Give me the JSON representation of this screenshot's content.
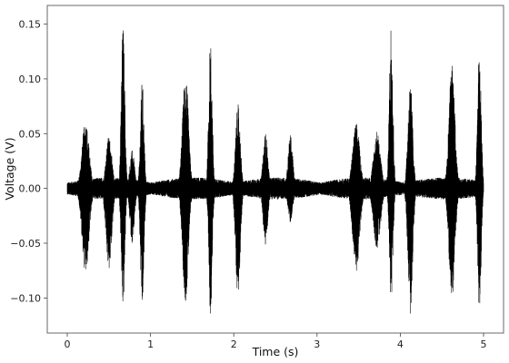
{
  "chart_data": {
    "type": "line",
    "title": "",
    "xlabel": "Time (s)",
    "ylabel": "Voltage (V)",
    "xlim": [
      -0.24,
      5.24
    ],
    "ylim": [
      -0.132,
      0.167
    ],
    "x_ticks": [
      0,
      1,
      2,
      3,
      4,
      5
    ],
    "y_ticks": [
      -0.1,
      -0.05,
      0.0,
      0.05,
      0.1,
      0.15
    ],
    "x_tick_labels": [
      "0",
      "1",
      "2",
      "3",
      "4",
      "5"
    ],
    "y_tick_labels": [
      "−0.10",
      "−0.05",
      "0.00",
      "0.05",
      "0.10",
      "0.15"
    ],
    "grid": false,
    "line_color": "#000000",
    "series": [
      {
        "sample_range": [
          0,
          5
        ],
        "baseline_amplitude": 0.01,
        "bursts": [
          {
            "t": 0.22,
            "width": 0.06,
            "pos": 0.062,
            "neg": -0.078
          },
          {
            "t": 0.5,
            "width": 0.05,
            "pos": 0.048,
            "neg": -0.075
          },
          {
            "t": 0.67,
            "width": 0.03,
            "pos": 0.15,
            "neg": -0.111
          },
          {
            "t": 0.78,
            "width": 0.04,
            "pos": 0.035,
            "neg": -0.05
          },
          {
            "t": 0.9,
            "width": 0.03,
            "pos": 0.099,
            "neg": -0.112
          },
          {
            "t": 1.42,
            "width": 0.05,
            "pos": 0.108,
            "neg": -0.103
          },
          {
            "t": 1.72,
            "width": 0.03,
            "pos": 0.135,
            "neg": -0.115
          },
          {
            "t": 2.05,
            "width": 0.04,
            "pos": 0.077,
            "neg": -0.098
          },
          {
            "t": 2.38,
            "width": 0.04,
            "pos": 0.051,
            "neg": -0.053
          },
          {
            "t": 2.68,
            "width": 0.04,
            "pos": 0.049,
            "neg": -0.032
          },
          {
            "t": 3.47,
            "width": 0.06,
            "pos": 0.06,
            "neg": -0.076
          },
          {
            "t": 3.72,
            "width": 0.06,
            "pos": 0.052,
            "neg": -0.055
          },
          {
            "t": 3.89,
            "width": 0.03,
            "pos": 0.155,
            "neg": -0.105
          },
          {
            "t": 4.12,
            "width": 0.04,
            "pos": 0.098,
            "neg": -0.117
          },
          {
            "t": 4.62,
            "width": 0.05,
            "pos": 0.113,
            "neg": -0.104
          },
          {
            "t": 4.95,
            "width": 0.03,
            "pos": 0.13,
            "neg": -0.113
          }
        ]
      }
    ]
  }
}
